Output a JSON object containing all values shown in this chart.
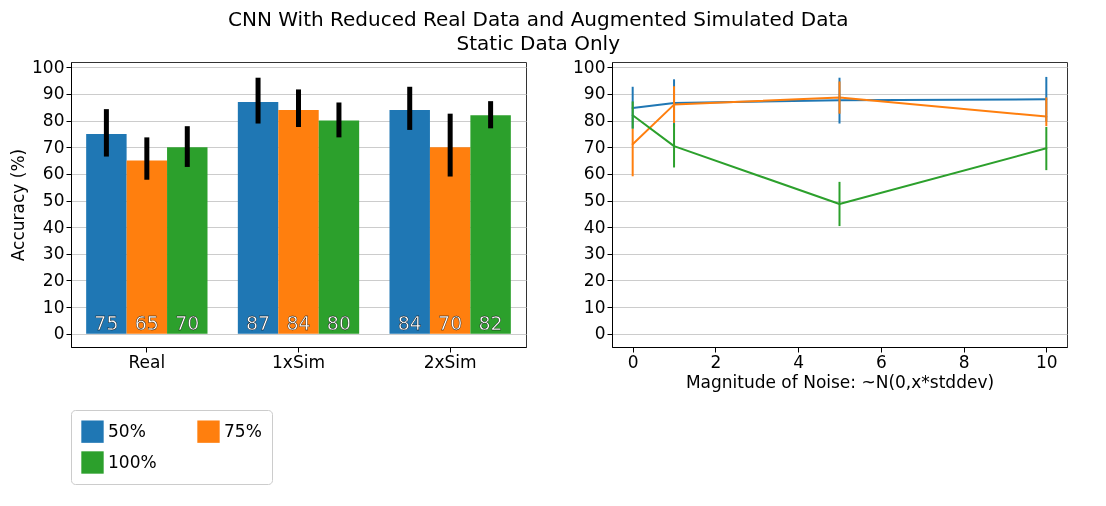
{
  "chart_data": [
    {
      "type": "bar",
      "title": "CNN With Reduced Real Data and Augmented Simulated Data",
      "subtitle": "Static Data Only",
      "ylabel": "Accuracy (%)",
      "categories": [
        "Real",
        "1xSim",
        "2xSim"
      ],
      "ylim": [
        -5,
        102
      ],
      "yticks": [
        0,
        10,
        20,
        30,
        40,
        50,
        60,
        70,
        80,
        90,
        100
      ],
      "grid": "y",
      "legend": "bottom",
      "data_labels": true,
      "series": [
        {
          "name": "50%",
          "color": "#1f77b4",
          "values": [
            75,
            87,
            84
          ],
          "errors": [
            [
              66.5,
              84.3
            ],
            [
              78.9,
              96.1
            ],
            [
              76.5,
              92.7
            ]
          ]
        },
        {
          "name": "75%",
          "color": "#ff7f0e",
          "values": [
            65,
            84,
            70
          ],
          "errors": [
            [
              57.8,
              73.7
            ],
            [
              77.6,
              91.7
            ],
            [
              59,
              82.6
            ]
          ]
        },
        {
          "name": "100%",
          "color": "#2ca02c",
          "values": [
            70,
            80,
            82
          ],
          "errors": [
            [
              62.6,
              77.9
            ],
            [
              73.7,
              86.8
            ],
            [
              77.1,
              87.3
            ]
          ]
        }
      ]
    },
    {
      "type": "line",
      "xlabel": "Magnitude of Noise: ~N(0,x*stddev)",
      "x": [
        0,
        1,
        5,
        10
      ],
      "xlim": [
        -0.5,
        10.5
      ],
      "xticks": [
        0,
        2,
        4,
        6,
        8,
        10
      ],
      "ylim": [
        -5,
        102
      ],
      "yticks": [
        0,
        10,
        20,
        30,
        40,
        50,
        60,
        70,
        80,
        90,
        100
      ],
      "grid": "y",
      "legend": false,
      "marker": "none",
      "line_style": "solid",
      "series": [
        {
          "color": "#1f77b4",
          "values": [
            84.7,
            86.6,
            87.6,
            88
          ],
          "errors": [
            [
              77,
              92.7
            ],
            [
              77.7,
              95.5
            ],
            [
              78.9,
              96.1
            ],
            [
              79.6,
              96.4
            ]
          ]
        },
        {
          "color": "#ff7f0e",
          "values": [
            71.1,
            86,
            88.7,
            81.5
          ],
          "errors": [
            [
              59.1,
              77
            ],
            [
              79.1,
              92.9
            ],
            [
              82.6,
              94.7
            ],
            [
              77.9,
              88.7
            ]
          ]
        },
        {
          "color": "#2ca02c",
          "values": [
            82,
            70.4,
            48.7,
            69.6
          ],
          "errors": [
            [
              77,
              87.2
            ],
            [
              62.4,
              78.9
            ],
            [
              40.4,
              57
            ],
            [
              61.4,
              77.6
            ]
          ]
        }
      ]
    }
  ]
}
